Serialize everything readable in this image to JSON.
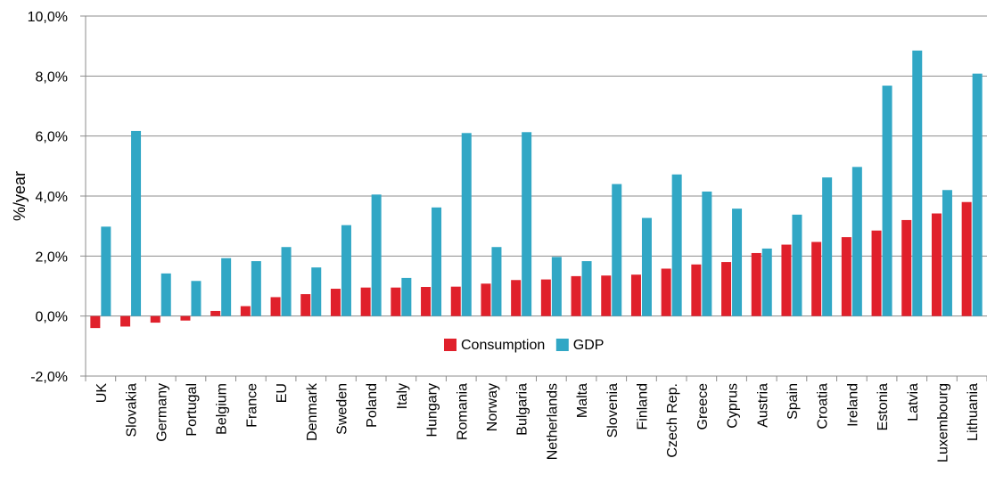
{
  "chart_data": {
    "type": "bar",
    "title": "",
    "xlabel": "",
    "ylabel": "%/year",
    "ylim": [
      -2,
      10
    ],
    "yticks": [
      -2,
      0,
      2,
      4,
      6,
      8,
      10
    ],
    "ytick_labels": [
      "-2,0%",
      "0,0%",
      "2,0%",
      "4,0%",
      "6,0%",
      "8,0%",
      "10,0%"
    ],
    "grid": true,
    "legend_position": "bottom-center",
    "categories": [
      "UK",
      "Slovakia",
      "Germany",
      "Portugal",
      "Belgium",
      "France",
      "EU",
      "Denmark",
      "Sweden",
      "Poland",
      "Italy",
      "Hungary",
      "Romania",
      "Norway",
      "Bulgaria",
      "Netherlands",
      "Malta",
      "Slovenia",
      "Finland",
      "Czech Rep.",
      "Greece",
      "Cyprus",
      "Austria",
      "Spain",
      "Croatia",
      "Ireland",
      "Estonia",
      "Latvia",
      "Luxembourg",
      "Lithuania"
    ],
    "series": [
      {
        "name": "Consumption",
        "color": "#e0202b",
        "values": [
          -0.4,
          -0.35,
          -0.22,
          -0.15,
          0.17,
          0.33,
          0.63,
          0.73,
          0.91,
          0.95,
          0.95,
          0.97,
          0.98,
          1.08,
          1.2,
          1.22,
          1.33,
          1.35,
          1.38,
          1.58,
          1.72,
          1.8,
          2.1,
          2.38,
          2.47,
          2.63,
          2.85,
          3.2,
          3.42,
          3.8
        ]
      },
      {
        "name": "GDP",
        "color": "#31a7c5",
        "values": [
          2.98,
          6.17,
          1.42,
          1.17,
          1.93,
          1.83,
          2.3,
          1.62,
          3.03,
          4.05,
          1.27,
          3.62,
          6.1,
          2.3,
          6.13,
          1.97,
          1.83,
          4.4,
          3.27,
          4.72,
          4.15,
          3.58,
          2.25,
          3.38,
          4.62,
          4.97,
          7.68,
          8.85,
          4.2,
          8.08
        ]
      }
    ]
  }
}
